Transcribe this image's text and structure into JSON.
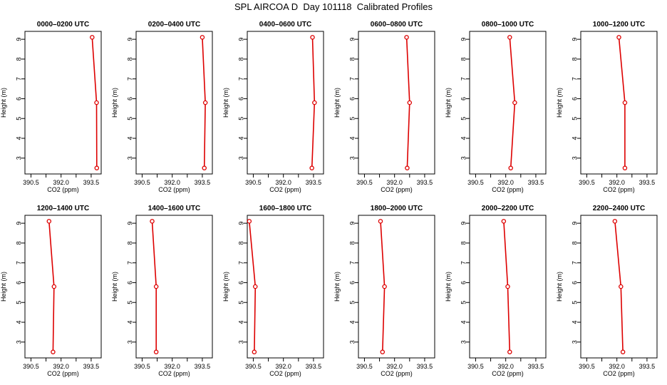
{
  "figure": {
    "title": "SPL AIRCOA D  Day 101118  Calibrated Profiles"
  },
  "style": {
    "line_color": "#dd0000",
    "axis_color": "#000000",
    "background": "#ffffff"
  },
  "chart_data": [
    {
      "type": "line",
      "title": "0000–0200 UTC",
      "xlabel": "CO2 (ppm)",
      "ylabel": "Height (m)",
      "xlim": [
        390.2,
        394.0
      ],
      "ylim": [
        2.2,
        9.4
      ],
      "xticks": [
        "390.5",
        "392.0",
        "393.5"
      ],
      "yticks": [
        "3",
        "4",
        "5",
        "6",
        "7",
        "8",
        "9"
      ],
      "x": [
        393.55,
        393.77,
        393.78
      ],
      "y": [
        9.1,
        5.8,
        2.5
      ]
    },
    {
      "type": "line",
      "title": "0200–0400 UTC",
      "xlabel": "CO2 (ppm)",
      "ylabel": "Height (m)",
      "xlim": [
        390.2,
        394.0
      ],
      "ylim": [
        2.2,
        9.4
      ],
      "xticks": [
        "390.5",
        "392.0",
        "393.5"
      ],
      "yticks": [
        "3",
        "4",
        "5",
        "6",
        "7",
        "8",
        "9"
      ],
      "x": [
        393.5,
        393.65,
        393.6
      ],
      "y": [
        9.1,
        5.8,
        2.5
      ]
    },
    {
      "type": "line",
      "title": "0400–0600 UTC",
      "xlabel": "CO2 (ppm)",
      "ylabel": "Height (m)",
      "xlim": [
        390.2,
        394.0
      ],
      "ylim": [
        2.2,
        9.4
      ],
      "xticks": [
        "390.5",
        "392.0",
        "393.5"
      ],
      "yticks": [
        "3",
        "4",
        "5",
        "6",
        "7",
        "8",
        "9"
      ],
      "x": [
        393.45,
        393.55,
        393.42
      ],
      "y": [
        9.1,
        5.8,
        2.5
      ]
    },
    {
      "type": "line",
      "title": "0600–0800 UTC",
      "xlabel": "CO2 (ppm)",
      "ylabel": "Height (m)",
      "xlim": [
        390.2,
        394.0
      ],
      "ylim": [
        2.2,
        9.4
      ],
      "xticks": [
        "390.5",
        "392.0",
        "393.5"
      ],
      "yticks": [
        "3",
        "4",
        "5",
        "6",
        "7",
        "8",
        "9"
      ],
      "x": [
        392.6,
        392.75,
        392.63
      ],
      "y": [
        9.1,
        5.8,
        2.5
      ]
    },
    {
      "type": "line",
      "title": "0800–1000 UTC",
      "xlabel": "CO2 (ppm)",
      "ylabel": "Height (m)",
      "xlim": [
        390.2,
        394.0
      ],
      "ylim": [
        2.2,
        9.4
      ],
      "xticks": [
        "390.5",
        "392.0",
        "393.5"
      ],
      "yticks": [
        "3",
        "4",
        "5",
        "6",
        "7",
        "8",
        "9"
      ],
      "x": [
        392.2,
        392.45,
        392.25
      ],
      "y": [
        9.1,
        5.8,
        2.5
      ]
    },
    {
      "type": "line",
      "title": "1000–1200 UTC",
      "xlabel": "CO2 (ppm)",
      "ylabel": "Height (m)",
      "xlim": [
        390.2,
        394.0
      ],
      "ylim": [
        2.2,
        9.4
      ],
      "xticks": [
        "390.5",
        "392.0",
        "393.5"
      ],
      "yticks": [
        "3",
        "4",
        "5",
        "6",
        "7",
        "8",
        "9"
      ],
      "x": [
        392.1,
        392.4,
        392.4
      ],
      "y": [
        9.1,
        5.8,
        2.5
      ]
    },
    {
      "type": "line",
      "title": "1200–1400 UTC",
      "xlabel": "CO2 (ppm)",
      "ylabel": "Height (m)",
      "xlim": [
        390.2,
        394.0
      ],
      "ylim": [
        2.2,
        9.4
      ],
      "xticks": [
        "390.5",
        "392.0",
        "393.5"
      ],
      "yticks": [
        "3",
        "4",
        "5",
        "6",
        "7",
        "8",
        "9"
      ],
      "x": [
        391.4,
        391.65,
        391.6
      ],
      "y": [
        9.1,
        5.8,
        2.5
      ]
    },
    {
      "type": "line",
      "title": "1400–1600 UTC",
      "xlabel": "CO2 (ppm)",
      "ylabel": "Height (m)",
      "xlim": [
        390.2,
        394.0
      ],
      "ylim": [
        2.2,
        9.4
      ],
      "xticks": [
        "390.5",
        "392.0",
        "393.5"
      ],
      "yticks": [
        "3",
        "4",
        "5",
        "6",
        "7",
        "8",
        "9"
      ],
      "x": [
        391.0,
        391.2,
        391.2
      ],
      "y": [
        9.1,
        5.8,
        2.5
      ]
    },
    {
      "type": "line",
      "title": "1600–1800 UTC",
      "xlabel": "CO2 (ppm)",
      "ylabel": "Height (m)",
      "xlim": [
        390.2,
        394.0
      ],
      "ylim": [
        2.2,
        9.4
      ],
      "xticks": [
        "390.5",
        "392.0",
        "393.5"
      ],
      "yticks": [
        "3",
        "4",
        "5",
        "6",
        "7",
        "8",
        "9"
      ],
      "x": [
        390.3,
        390.6,
        390.55
      ],
      "y": [
        9.1,
        5.8,
        2.5
      ]
    },
    {
      "type": "line",
      "title": "1800–2000 UTC",
      "xlabel": "CO2 (ppm)",
      "ylabel": "Height (m)",
      "xlim": [
        390.2,
        394.0
      ],
      "ylim": [
        2.2,
        9.4
      ],
      "xticks": [
        "390.5",
        "392.0",
        "393.5"
      ],
      "yticks": [
        "3",
        "4",
        "5",
        "6",
        "7",
        "8",
        "9"
      ],
      "x": [
        391.3,
        391.5,
        391.4
      ],
      "y": [
        9.1,
        5.8,
        2.5
      ]
    },
    {
      "type": "line",
      "title": "2000–2200 UTC",
      "xlabel": "CO2 (ppm)",
      "ylabel": "Height (m)",
      "xlim": [
        390.2,
        394.0
      ],
      "ylim": [
        2.2,
        9.4
      ],
      "xticks": [
        "390.5",
        "392.0",
        "393.5"
      ],
      "yticks": [
        "3",
        "4",
        "5",
        "6",
        "7",
        "8",
        "9"
      ],
      "x": [
        391.9,
        392.1,
        392.2
      ],
      "y": [
        9.1,
        5.8,
        2.5
      ]
    },
    {
      "type": "line",
      "title": "2200–2400 UTC",
      "xlabel": "CO2 (ppm)",
      "ylabel": "Height (m)",
      "xlim": [
        390.2,
        394.0
      ],
      "ylim": [
        2.2,
        9.4
      ],
      "xticks": [
        "390.5",
        "392.0",
        "393.5"
      ],
      "yticks": [
        "3",
        "4",
        "5",
        "6",
        "7",
        "8",
        "9"
      ],
      "x": [
        391.9,
        392.2,
        392.3
      ],
      "y": [
        9.1,
        5.8,
        2.5
      ]
    }
  ]
}
